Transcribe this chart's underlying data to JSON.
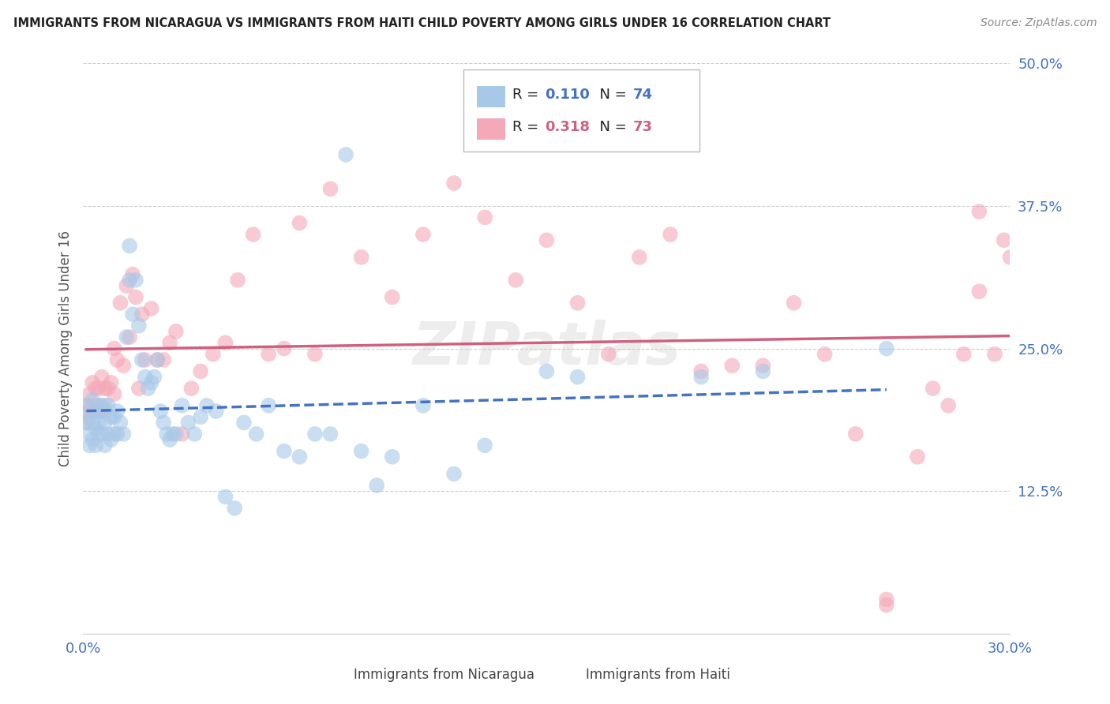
{
  "title": "IMMIGRANTS FROM NICARAGUA VS IMMIGRANTS FROM HAITI CHILD POVERTY AMONG GIRLS UNDER 16 CORRELATION CHART",
  "source": "Source: ZipAtlas.com",
  "ylabel": "Child Poverty Among Girls Under 16",
  "xlim": [
    0.0,
    0.3
  ],
  "ylim": [
    0.0,
    0.5
  ],
  "yticks": [
    0.125,
    0.25,
    0.375,
    0.5
  ],
  "ytick_labels": [
    "12.5%",
    "25.0%",
    "37.5%",
    "50.0%"
  ],
  "xtick_left": "0.0%",
  "xtick_right": "30.0%",
  "legend_label1": "Immigrants from Nicaragua",
  "legend_label2": "Immigrants from Haiti",
  "R1": 0.11,
  "N1": 74,
  "R2": 0.318,
  "N2": 73,
  "color_nicaragua": "#a8c8e8",
  "color_haiti": "#f4a8b8",
  "color_nicaragua_line": "#4472c4",
  "color_haiti_line": "#d06080",
  "background": "#ffffff",
  "grid_color": "#cccccc",
  "nicaragua_x": [
    0.001,
    0.001,
    0.002,
    0.002,
    0.002,
    0.003,
    0.003,
    0.003,
    0.004,
    0.004,
    0.004,
    0.005,
    0.005,
    0.005,
    0.006,
    0.006,
    0.007,
    0.007,
    0.007,
    0.008,
    0.008,
    0.009,
    0.009,
    0.01,
    0.01,
    0.011,
    0.011,
    0.012,
    0.013,
    0.014,
    0.015,
    0.015,
    0.016,
    0.017,
    0.018,
    0.019,
    0.02,
    0.021,
    0.022,
    0.023,
    0.024,
    0.025,
    0.026,
    0.027,
    0.028,
    0.029,
    0.03,
    0.032,
    0.034,
    0.036,
    0.038,
    0.04,
    0.043,
    0.046,
    0.049,
    0.052,
    0.056,
    0.06,
    0.065,
    0.07,
    0.075,
    0.08,
    0.085,
    0.09,
    0.095,
    0.1,
    0.11,
    0.12,
    0.13,
    0.15,
    0.16,
    0.2,
    0.22,
    0.26
  ],
  "nicaragua_y": [
    0.2,
    0.185,
    0.19,
    0.175,
    0.165,
    0.205,
    0.185,
    0.17,
    0.195,
    0.18,
    0.165,
    0.2,
    0.185,
    0.175,
    0.195,
    0.175,
    0.2,
    0.185,
    0.165,
    0.2,
    0.175,
    0.19,
    0.17,
    0.19,
    0.175,
    0.195,
    0.175,
    0.185,
    0.175,
    0.26,
    0.34,
    0.31,
    0.28,
    0.31,
    0.27,
    0.24,
    0.225,
    0.215,
    0.22,
    0.225,
    0.24,
    0.195,
    0.185,
    0.175,
    0.17,
    0.175,
    0.175,
    0.2,
    0.185,
    0.175,
    0.19,
    0.2,
    0.195,
    0.12,
    0.11,
    0.185,
    0.175,
    0.2,
    0.16,
    0.155,
    0.175,
    0.175,
    0.42,
    0.16,
    0.13,
    0.155,
    0.2,
    0.14,
    0.165,
    0.23,
    0.225,
    0.225,
    0.23,
    0.25
  ],
  "haiti_x": [
    0.001,
    0.001,
    0.002,
    0.002,
    0.003,
    0.003,
    0.004,
    0.004,
    0.005,
    0.005,
    0.006,
    0.006,
    0.007,
    0.007,
    0.008,
    0.009,
    0.01,
    0.01,
    0.011,
    0.012,
    0.013,
    0.014,
    0.015,
    0.016,
    0.017,
    0.018,
    0.019,
    0.02,
    0.022,
    0.024,
    0.026,
    0.028,
    0.03,
    0.032,
    0.035,
    0.038,
    0.042,
    0.046,
    0.05,
    0.055,
    0.06,
    0.065,
    0.07,
    0.075,
    0.08,
    0.09,
    0.1,
    0.11,
    0.12,
    0.13,
    0.14,
    0.15,
    0.16,
    0.17,
    0.18,
    0.19,
    0.2,
    0.21,
    0.22,
    0.23,
    0.24,
    0.25,
    0.26,
    0.27,
    0.28,
    0.285,
    0.29,
    0.295,
    0.298,
    0.3,
    0.29,
    0.275,
    0.26
  ],
  "haiti_y": [
    0.2,
    0.185,
    0.21,
    0.195,
    0.22,
    0.195,
    0.215,
    0.2,
    0.215,
    0.195,
    0.225,
    0.2,
    0.215,
    0.195,
    0.215,
    0.22,
    0.25,
    0.21,
    0.24,
    0.29,
    0.235,
    0.305,
    0.26,
    0.315,
    0.295,
    0.215,
    0.28,
    0.24,
    0.285,
    0.24,
    0.24,
    0.255,
    0.265,
    0.175,
    0.215,
    0.23,
    0.245,
    0.255,
    0.31,
    0.35,
    0.245,
    0.25,
    0.36,
    0.245,
    0.39,
    0.33,
    0.295,
    0.35,
    0.395,
    0.365,
    0.31,
    0.345,
    0.29,
    0.245,
    0.33,
    0.35,
    0.23,
    0.235,
    0.235,
    0.29,
    0.245,
    0.175,
    0.03,
    0.155,
    0.2,
    0.245,
    0.3,
    0.245,
    0.345,
    0.33,
    0.37,
    0.215,
    0.025
  ]
}
